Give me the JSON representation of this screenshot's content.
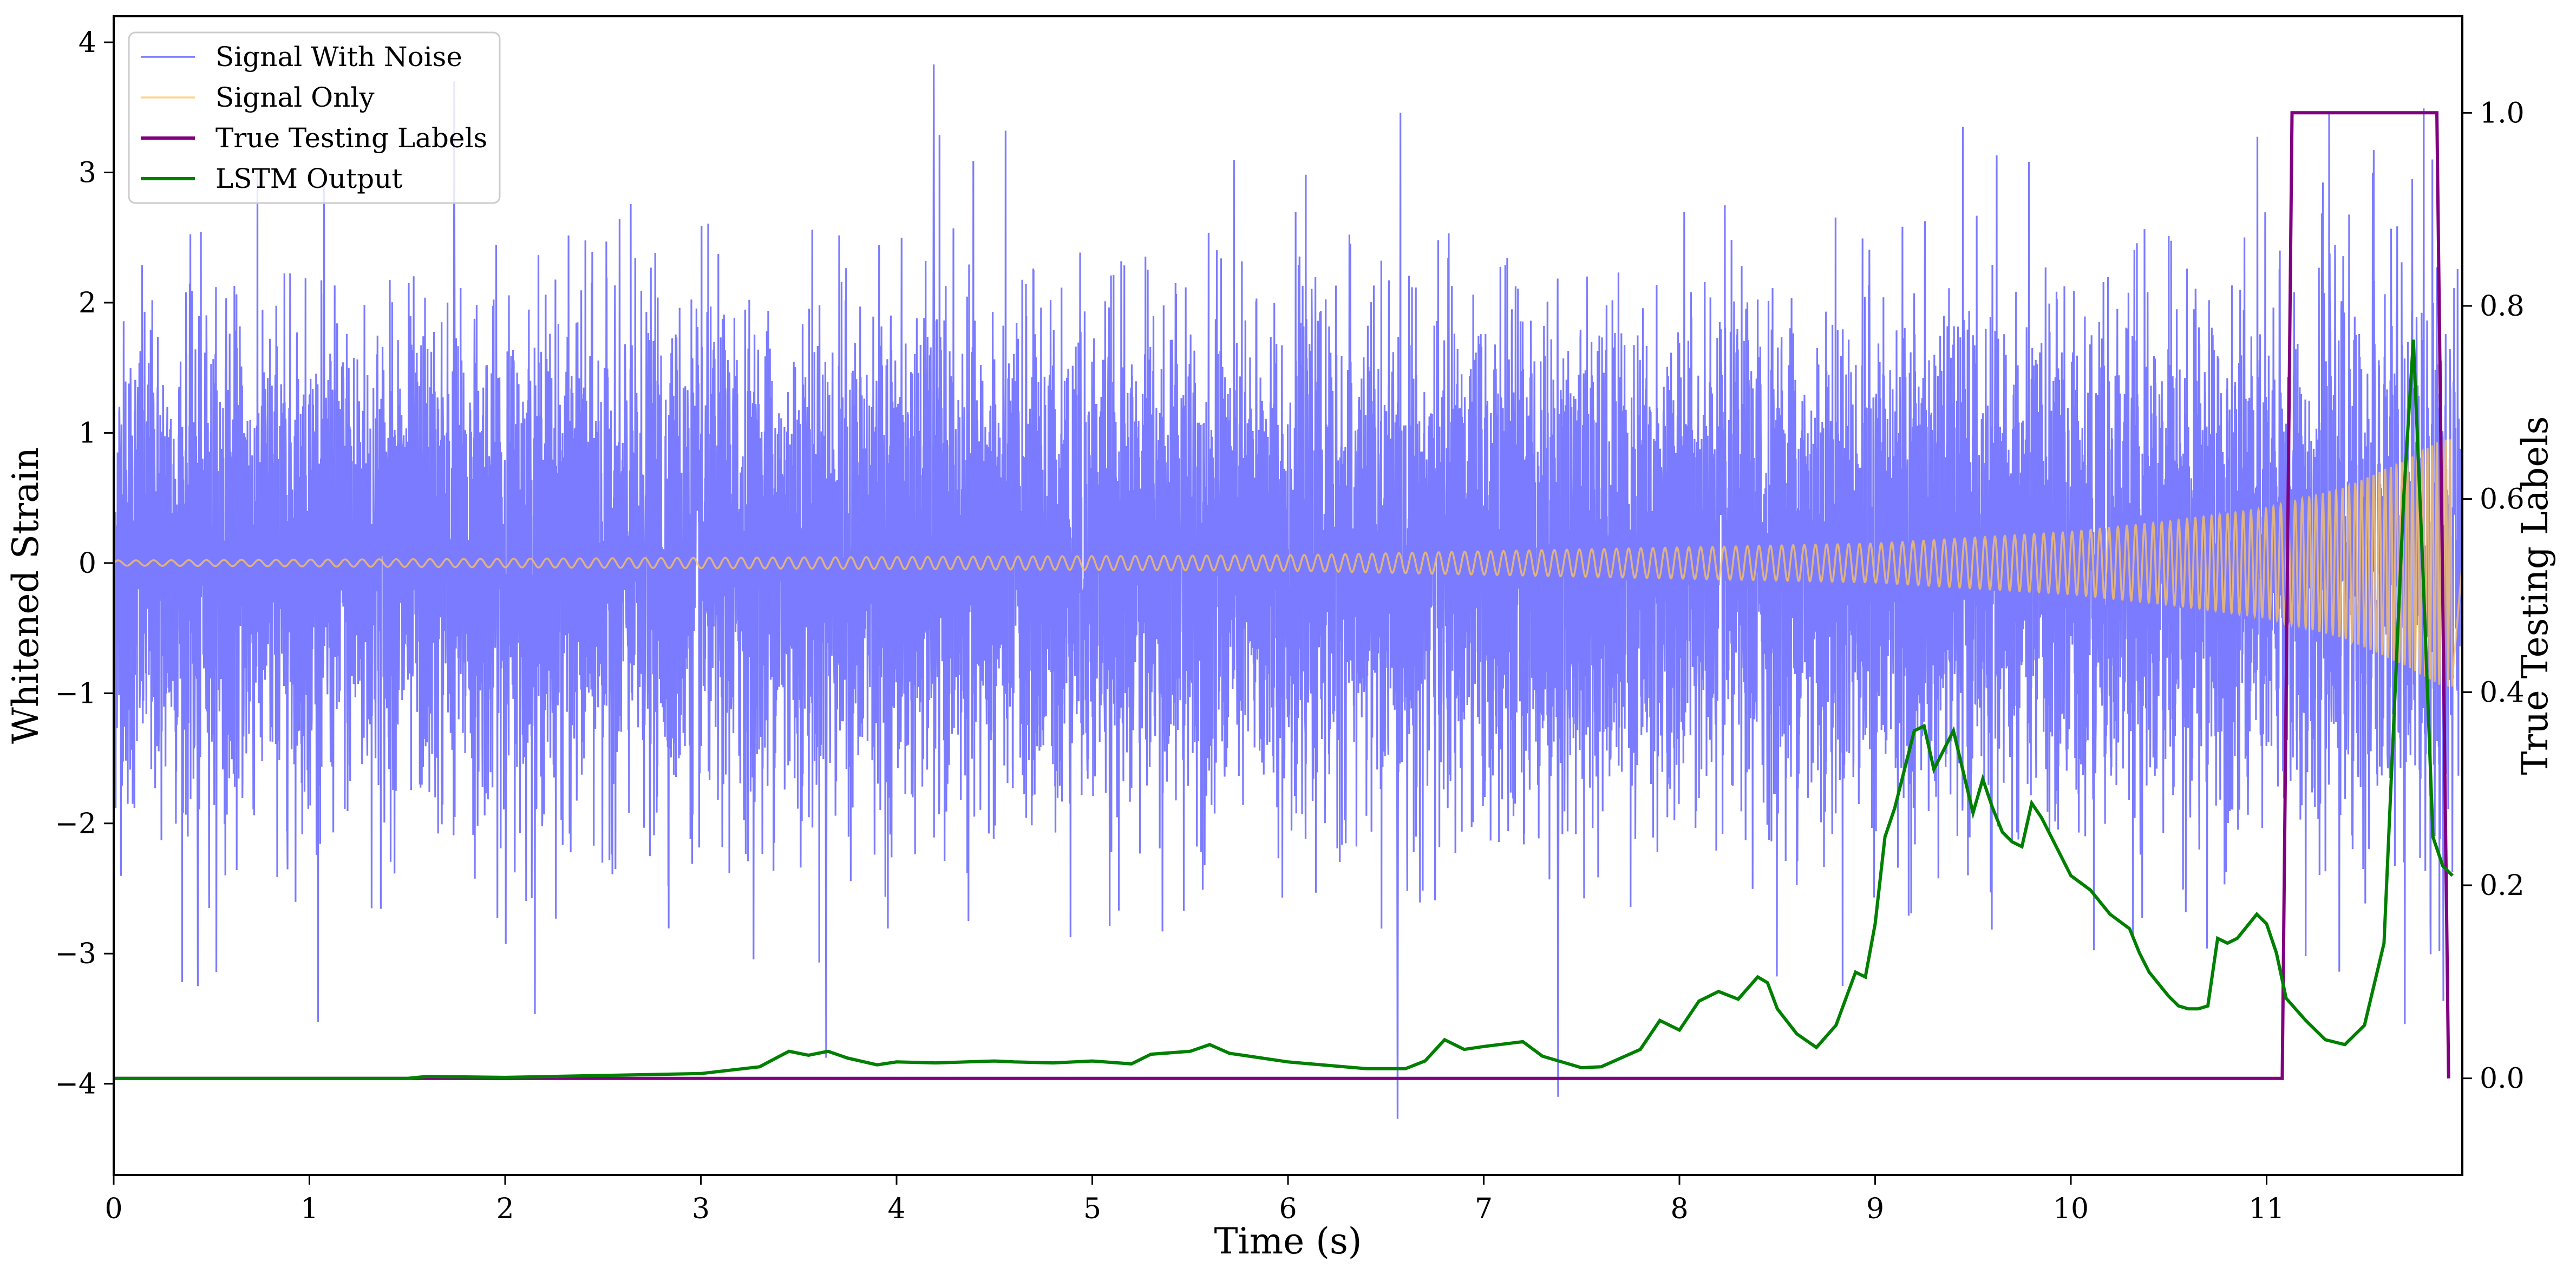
{
  "chart_data": {
    "type": "line",
    "xlabel": "Time (s)",
    "ylabel_left": "Whitened Strain",
    "ylabel_right": "True Testing Labels",
    "xlim": [
      0,
      12
    ],
    "ylim_left": [
      -4.7,
      4.2
    ],
    "ylim_right": [
      -0.1,
      1.1
    ],
    "x_ticks": [
      "0",
      "1",
      "2",
      "3",
      "4",
      "5",
      "6",
      "7",
      "8",
      "9",
      "10",
      "11"
    ],
    "y_left_ticks": [
      "4",
      "3",
      "2",
      "1",
      "0",
      "−1",
      "−2",
      "−3",
      "−4"
    ],
    "y_right_ticks": [
      "1.0",
      "0.8",
      "0.6",
      "0.4",
      "0.2",
      "0.0"
    ],
    "grid": false,
    "legend": "top-left",
    "series": [
      {
        "name": "Signal With Noise",
        "axis": "left",
        "color": "#7b7bff",
        "description": "dense noisy strain, typical range ±2.5, spikes to ~3.8 and ~-4.3",
        "extremes": {
          "max": 3.83,
          "min": -4.27
        }
      },
      {
        "name": "Signal Only",
        "axis": "left",
        "color": "#ffc45a",
        "description": "chirp signal, amplitude grows from ~0.02 near t=0 to ~1 near t=11.9",
        "envelope": {
          "t": [
            0,
            6,
            9,
            10,
            10.5,
            11,
            11.4,
            11.7,
            11.9
          ],
          "amp": [
            0.02,
            0.06,
            0.15,
            0.24,
            0.32,
            0.42,
            0.58,
            0.78,
            0.95
          ]
        }
      },
      {
        "name": "True Testing Labels",
        "axis": "right",
        "color": "#800080",
        "x": [
          0,
          11.08,
          11.13,
          11.87,
          11.93
        ],
        "y": [
          0,
          0,
          1,
          1,
          0
        ]
      },
      {
        "name": "LSTM Output",
        "axis": "right",
        "color": "#008000",
        "x": [
          0,
          1.5,
          1.6,
          2.0,
          2.5,
          3.0,
          3.3,
          3.45,
          3.55,
          3.65,
          3.75,
          3.9,
          4.0,
          4.2,
          4.5,
          4.6,
          4.8,
          5.0,
          5.2,
          5.3,
          5.5,
          5.6,
          5.7,
          6.0,
          6.4,
          6.6,
          6.7,
          6.8,
          6.9,
          7.0,
          7.2,
          7.3,
          7.5,
          7.6,
          7.7,
          7.8,
          7.9,
          8.0,
          8.1,
          8.2,
          8.3,
          8.4,
          8.45,
          8.5,
          8.6,
          8.7,
          8.8,
          8.9,
          8.95,
          9.0,
          9.05,
          9.1,
          9.2,
          9.25,
          9.3,
          9.4,
          9.5,
          9.55,
          9.6,
          9.65,
          9.7,
          9.75,
          9.8,
          9.85,
          9.9,
          10.0,
          10.1,
          10.2,
          10.3,
          10.35,
          10.4,
          10.5,
          10.55,
          10.6,
          10.65,
          10.7,
          10.75,
          10.8,
          10.85,
          10.95,
          11.0,
          11.05,
          11.1,
          11.2,
          11.3,
          11.4,
          11.5,
          11.6,
          11.7,
          11.75,
          11.8,
          11.85,
          11.9,
          11.95
        ],
        "y": [
          0.0,
          0.0,
          0.002,
          0.001,
          0.003,
          0.005,
          0.012,
          0.028,
          0.024,
          0.028,
          0.021,
          0.014,
          0.017,
          0.016,
          0.018,
          0.017,
          0.016,
          0.018,
          0.015,
          0.025,
          0.028,
          0.035,
          0.026,
          0.017,
          0.01,
          0.01,
          0.018,
          0.04,
          0.03,
          0.033,
          0.038,
          0.023,
          0.011,
          0.012,
          0.021,
          0.03,
          0.06,
          0.05,
          0.08,
          0.09,
          0.082,
          0.105,
          0.099,
          0.072,
          0.046,
          0.032,
          0.055,
          0.11,
          0.105,
          0.16,
          0.25,
          0.28,
          0.36,
          0.365,
          0.32,
          0.36,
          0.275,
          0.31,
          0.28,
          0.255,
          0.245,
          0.24,
          0.285,
          0.27,
          0.25,
          0.21,
          0.195,
          0.17,
          0.155,
          0.13,
          0.11,
          0.085,
          0.075,
          0.072,
          0.072,
          0.075,
          0.145,
          0.14,
          0.145,
          0.17,
          0.16,
          0.13,
          0.083,
          0.06,
          0.04,
          0.035,
          0.055,
          0.14,
          0.6,
          0.765,
          0.52,
          0.25,
          0.22,
          0.21
        ]
      }
    ]
  }
}
